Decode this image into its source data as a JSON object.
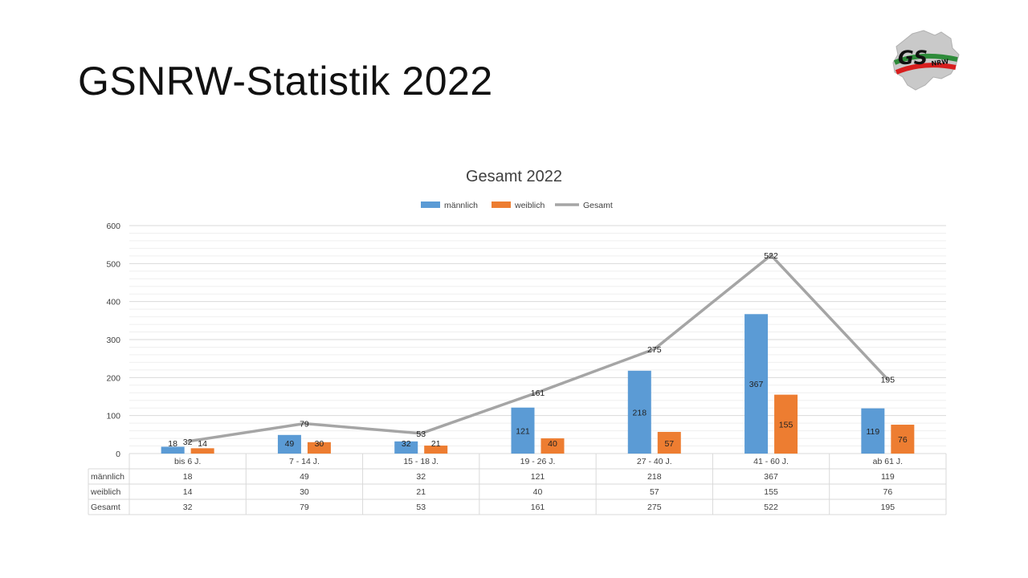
{
  "slide": {
    "title": "GSNRW-Statistik 2022",
    "logo_text": "GS",
    "logo_subtext": "NRW"
  },
  "chart_data": {
    "type": "bar",
    "combo": "clustered bars with line",
    "title": "Gesamt 2022",
    "categories": [
      "bis 6 J.",
      "7 - 14 J.",
      "15 - 18 J.",
      "19 - 26 J.",
      "27 - 40 J.",
      "41 - 60 J.",
      "ab 61 J."
    ],
    "series": [
      {
        "name": "männlich",
        "type": "bar",
        "color": "#5B9BD5",
        "values": [
          18,
          49,
          32,
          121,
          218,
          367,
          119
        ]
      },
      {
        "name": "weiblich",
        "type": "bar",
        "color": "#ED7D31",
        "values": [
          14,
          30,
          21,
          40,
          57,
          155,
          76
        ]
      },
      {
        "name": "Gesamt",
        "type": "line",
        "color": "#A5A5A5",
        "values": [
          32,
          79,
          53,
          161,
          275,
          522,
          195
        ]
      }
    ],
    "yticks": [
      0,
      100,
      200,
      300,
      400,
      500,
      600
    ],
    "ylim": [
      0,
      600
    ],
    "grid": true,
    "legend_position": "top",
    "data_table": true
  }
}
